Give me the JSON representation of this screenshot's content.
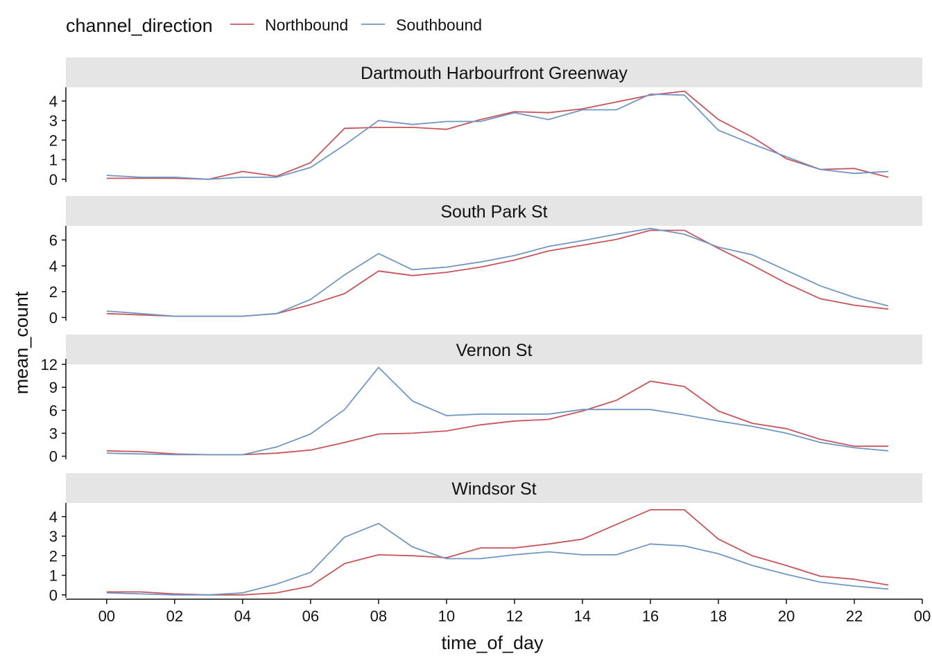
{
  "legend": {
    "title": "channel_direction",
    "items": [
      {
        "label": "Northbound",
        "color": "#c8545a"
      },
      {
        "label": "Southbound",
        "color": "#6f96c4"
      }
    ]
  },
  "axes": {
    "xlabel": "time_of_day",
    "ylabel": "mean_count",
    "x_ticks": [
      "00",
      "02",
      "04",
      "06",
      "08",
      "10",
      "12",
      "14",
      "16",
      "18",
      "20",
      "22",
      "00"
    ]
  },
  "chart_data": {
    "type": "line",
    "facet_by": "location",
    "x": [
      0,
      1,
      2,
      3,
      4,
      5,
      6,
      7,
      8,
      9,
      10,
      11,
      12,
      13,
      14,
      15,
      16,
      17,
      18,
      19,
      20,
      21,
      22,
      23
    ],
    "xlim": [
      -1.2,
      24
    ],
    "panels": [
      {
        "title": "Dartmouth Harbourfront Greenway",
        "ylim": [
          -0.15,
          4.7
        ],
        "y_ticks": [
          0,
          1,
          2,
          3,
          4
        ],
        "series": [
          {
            "name": "Northbound",
            "values": [
              0.05,
              0.05,
              0.05,
              0.0,
              0.4,
              0.15,
              0.85,
              2.6,
              2.65,
              2.65,
              2.55,
              3.05,
              3.45,
              3.4,
              3.6,
              3.95,
              4.3,
              4.5,
              3.05,
              2.15,
              1.05,
              0.5,
              0.55,
              0.1
            ]
          },
          {
            "name": "Southbound",
            "values": [
              0.2,
              0.1,
              0.1,
              0.0,
              0.1,
              0.1,
              0.6,
              1.75,
              3.0,
              2.8,
              2.95,
              2.95,
              3.4,
              3.05,
              3.55,
              3.55,
              4.35,
              4.3,
              2.5,
              1.8,
              1.15,
              0.5,
              0.3,
              0.4
            ]
          }
        ]
      },
      {
        "title": "South Park St",
        "ylim": [
          -0.25,
          7.1
        ],
        "y_ticks": [
          0,
          2,
          4,
          6
        ],
        "series": [
          {
            "name": "Northbound",
            "values": [
              0.3,
              0.2,
              0.1,
              0.1,
              0.1,
              0.3,
              1.0,
              1.85,
              3.6,
              3.25,
              3.5,
              3.9,
              4.45,
              5.15,
              5.6,
              6.05,
              6.75,
              6.75,
              5.35,
              4.05,
              2.65,
              1.45,
              0.95,
              0.65
            ]
          },
          {
            "name": "Southbound",
            "values": [
              0.5,
              0.3,
              0.1,
              0.1,
              0.1,
              0.3,
              1.4,
              3.3,
              4.95,
              3.7,
              3.9,
              4.3,
              4.8,
              5.5,
              5.95,
              6.45,
              6.9,
              6.45,
              5.45,
              4.85,
              3.65,
              2.45,
              1.55,
              0.9
            ]
          }
        ]
      },
      {
        "title": "Vernon St",
        "ylim": [
          -0.4,
          12
        ],
        "y_ticks": [
          0,
          3,
          6,
          9,
          12
        ],
        "series": [
          {
            "name": "Northbound",
            "values": [
              0.7,
              0.6,
              0.3,
              0.2,
              0.2,
              0.4,
              0.8,
              1.8,
              2.9,
              3.0,
              3.3,
              4.1,
              4.6,
              4.8,
              5.9,
              7.3,
              9.8,
              9.1,
              5.9,
              4.3,
              3.6,
              2.2,
              1.3,
              1.3
            ]
          },
          {
            "name": "Southbound",
            "values": [
              0.4,
              0.3,
              0.2,
              0.2,
              0.2,
              1.2,
              2.9,
              6.1,
              11.6,
              7.2,
              5.3,
              5.5,
              5.5,
              5.5,
              6.1,
              6.1,
              6.1,
              5.4,
              4.6,
              3.9,
              3.0,
              1.8,
              1.1,
              0.7
            ]
          }
        ]
      },
      {
        "title": "Windsor St",
        "ylim": [
          -0.15,
          4.7
        ],
        "y_ticks": [
          0,
          1,
          2,
          3,
          4
        ],
        "series": [
          {
            "name": "Northbound",
            "values": [
              0.15,
              0.15,
              0.05,
              0.0,
              0.0,
              0.1,
              0.45,
              1.6,
              2.05,
              2.0,
              1.9,
              2.4,
              2.4,
              2.6,
              2.85,
              3.6,
              4.35,
              4.35,
              2.85,
              2.0,
              1.5,
              0.95,
              0.8,
              0.5
            ]
          },
          {
            "name": "Southbound",
            "values": [
              0.1,
              0.05,
              0.0,
              0.0,
              0.1,
              0.55,
              1.15,
              2.95,
              3.65,
              2.45,
              1.85,
              1.85,
              2.05,
              2.2,
              2.05,
              2.05,
              2.6,
              2.5,
              2.1,
              1.5,
              1.05,
              0.65,
              0.45,
              0.3
            ]
          }
        ]
      }
    ]
  }
}
